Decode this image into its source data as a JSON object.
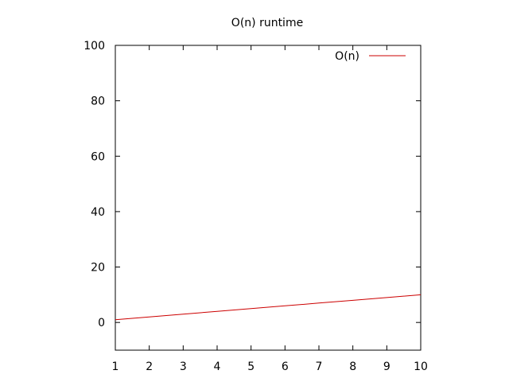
{
  "chart_data": {
    "type": "line",
    "title": "O(n) runtime",
    "xlabel": "",
    "ylabel": "",
    "xlim": [
      1,
      10
    ],
    "ylim": [
      -10,
      100
    ],
    "xticks": [
      1,
      2,
      3,
      4,
      5,
      6,
      7,
      8,
      9,
      10
    ],
    "yticks": [
      0,
      20,
      40,
      60,
      80,
      100
    ],
    "grid": false,
    "legend_position": "top-right",
    "series": [
      {
        "name": "O(n)",
        "color": "#cc0000",
        "x": [
          1,
          2,
          3,
          4,
          5,
          6,
          7,
          8,
          9,
          10
        ],
        "y": [
          1,
          2,
          3,
          4,
          5,
          6,
          7,
          8,
          9,
          10
        ]
      }
    ]
  }
}
